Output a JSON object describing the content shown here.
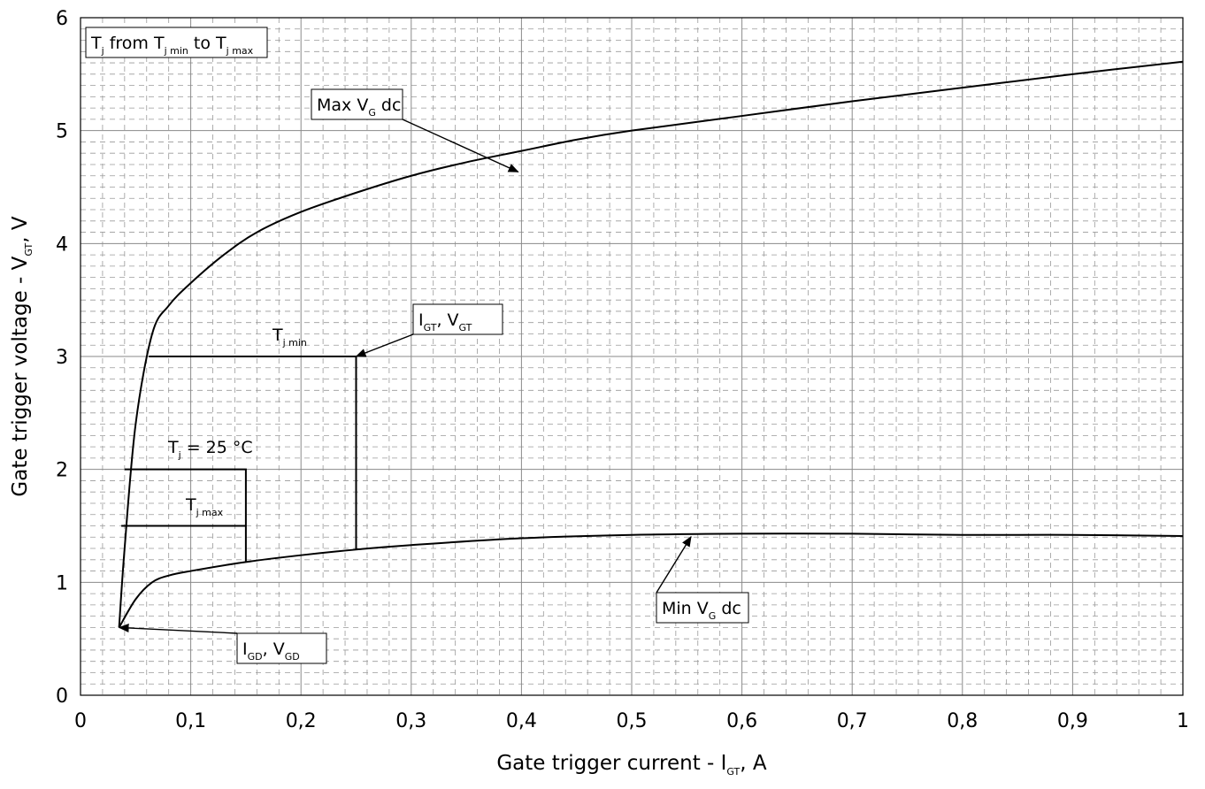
{
  "chart_data": {
    "type": "line",
    "xlabel": {
      "main": "Gate trigger current - I",
      "sub": "GT",
      "unit": ", A"
    },
    "ylabel": {
      "main": "Gate trigger voltage - V",
      "sub": "GT",
      "unit": ", V"
    },
    "xlim": [
      0,
      1
    ],
    "ylim": [
      0,
      6
    ],
    "x_ticks": [
      "0",
      "0,1",
      "0,2",
      "0,3",
      "0,4",
      "0,5",
      "0,6",
      "0,7",
      "0,8",
      "0,9",
      "1"
    ],
    "y_ticks": [
      "0",
      "1",
      "2",
      "3",
      "4",
      "5",
      "6"
    ],
    "grid": {
      "major": true,
      "minor": true
    },
    "series": [
      {
        "name": "Max V_G dc",
        "x": [
          0.035,
          0.04,
          0.05,
          0.065,
          0.08,
          0.1,
          0.13,
          0.16,
          0.2,
          0.25,
          0.3,
          0.35,
          0.4,
          0.45,
          0.5,
          0.6,
          0.7,
          0.8,
          0.9,
          1.0
        ],
        "y": [
          0.6,
          1.3,
          2.4,
          3.2,
          3.45,
          3.65,
          3.9,
          4.1,
          4.28,
          4.45,
          4.6,
          4.72,
          4.82,
          4.92,
          5.0,
          5.13,
          5.26,
          5.38,
          5.5,
          5.61
        ]
      },
      {
        "name": "Min V_G dc",
        "x": [
          0.035,
          0.05,
          0.065,
          0.08,
          0.1,
          0.15,
          0.2,
          0.25,
          0.3,
          0.4,
          0.5,
          0.6,
          0.7,
          0.8,
          0.9,
          1.0
        ],
        "y": [
          0.6,
          0.85,
          1.0,
          1.06,
          1.1,
          1.18,
          1.24,
          1.29,
          1.33,
          1.39,
          1.42,
          1.43,
          1.43,
          1.42,
          1.42,
          1.41
        ]
      },
      {
        "name": "T_j min",
        "x": [
          0.062,
          0.25,
          0.25
        ],
        "y": [
          3.0,
          3.0,
          1.29
        ]
      },
      {
        "name": "T_j = 25 °C",
        "x": [
          0.04,
          0.15,
          0.15
        ],
        "y": [
          2.0,
          2.0,
          1.18
        ]
      },
      {
        "name": "T_j max",
        "x": [
          0.037,
          0.15
        ],
        "y": [
          1.5,
          1.5
        ]
      }
    ],
    "labels": {
      "temp_range": {
        "parts": [
          "T",
          "j",
          " from T",
          "j min",
          " to T",
          "j max"
        ]
      },
      "max_vg": {
        "parts": [
          "Max V",
          "G",
          " dc"
        ],
        "points_to": [
          0.32,
          4.65
        ]
      },
      "min_vg": {
        "parts": [
          "Min V",
          "G",
          " dc"
        ],
        "points_to": [
          0.48,
          1.42
        ]
      },
      "igt_vgt": {
        "parts": [
          "I",
          "GT",
          ", V",
          "GT"
        ],
        "points_to": [
          0.25,
          3.0
        ]
      },
      "igd_vgd": {
        "parts": [
          "I",
          "GD",
          ", V",
          "GD"
        ],
        "points_to": [
          0.035,
          0.6
        ]
      },
      "tj_min": {
        "parts": [
          "T",
          "j min"
        ]
      },
      "tj_25": {
        "parts": [
          "T",
          "j",
          " = 25 °C"
        ]
      },
      "tj_max": {
        "parts": [
          "T",
          "j max"
        ]
      }
    }
  }
}
